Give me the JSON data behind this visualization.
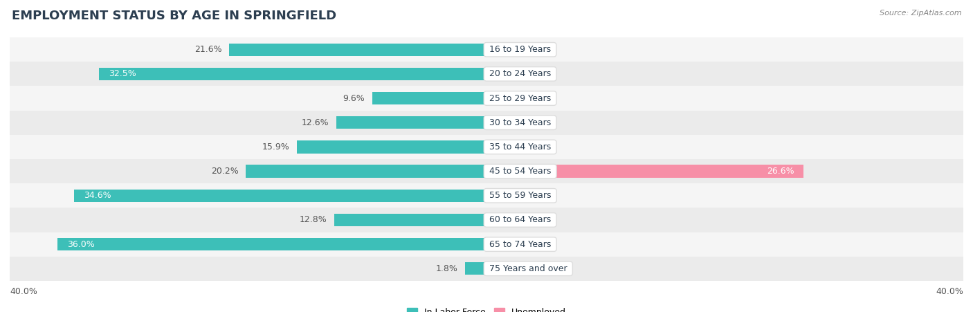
{
  "title": "EMPLOYMENT STATUS BY AGE IN SPRINGFIELD",
  "source": "Source: ZipAtlas.com",
  "categories": [
    "16 to 19 Years",
    "20 to 24 Years",
    "25 to 29 Years",
    "30 to 34 Years",
    "35 to 44 Years",
    "45 to 54 Years",
    "55 to 59 Years",
    "60 to 64 Years",
    "65 to 74 Years",
    "75 Years and over"
  ],
  "labor_force": [
    21.6,
    32.5,
    9.6,
    12.6,
    15.9,
    20.2,
    34.6,
    12.8,
    36.0,
    1.8
  ],
  "unemployed": [
    0.0,
    0.0,
    0.0,
    0.0,
    0.0,
    26.6,
    0.0,
    0.0,
    0.0,
    0.0
  ],
  "xlim": 40.0,
  "labor_force_color": "#3dbfb8",
  "unemployed_color": "#f78fa7",
  "unemployed_color_zero": "#f5c0ce",
  "bar_height": 0.52,
  "row_bg_even": "#f5f5f5",
  "row_bg_odd": "#ebebeb",
  "title_fontsize": 13,
  "axis_fontsize": 9,
  "label_fontsize": 9,
  "category_fontsize": 9,
  "legend_fontsize": 9,
  "title_color": "#2c3e50",
  "label_color_dark": "#555555",
  "label_color_white": "#ffffff"
}
